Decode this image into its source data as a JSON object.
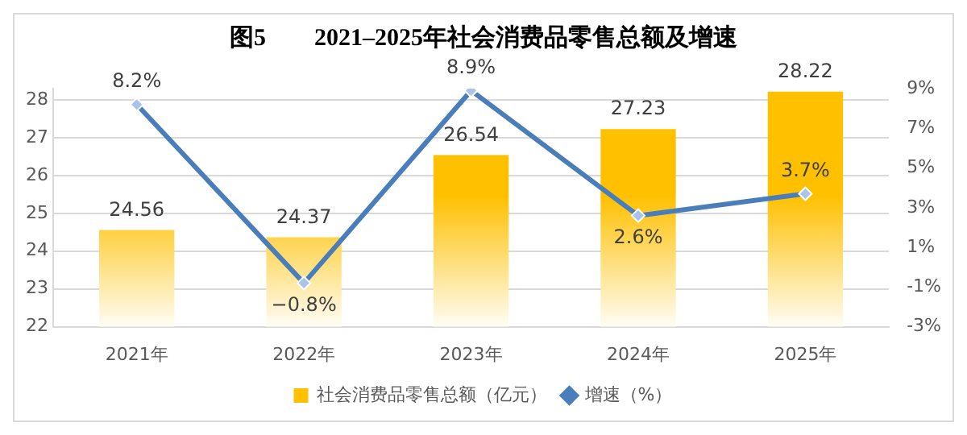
{
  "chart_data": {
    "type": "bar",
    "title": "图5        2021–2025年社会消费品零售总额及增速",
    "categories": [
      "2021年",
      "2022年",
      "2023年",
      "2024年",
      "2025年"
    ],
    "series": [
      {
        "name": "社会消费品零售总额（亿元）",
        "color": "#ffc000",
        "values": [
          24.56,
          24.37,
          26.54,
          27.23,
          28.22
        ],
        "value_labels": [
          "24.56",
          "24.37",
          "26.54",
          "27.23",
          "28.22"
        ]
      },
      {
        "name": "增速（%）",
        "type": "line",
        "axis": "y2",
        "color": "#4a7ebb",
        "marker": "diamond",
        "values": [
          8.2,
          -0.8,
          8.9,
          2.6,
          3.7
        ],
        "value_labels": [
          "8.2%",
          "−0.8%",
          "8.9%",
          "2.6%",
          "3.7%"
        ]
      }
    ],
    "ylim": [
      22,
      28.3
    ],
    "yticks": [
      22,
      23,
      24,
      25,
      26,
      27,
      28
    ],
    "y2lim": [
      -3,
      9
    ],
    "y2ticks": [
      {
        "value": -3,
        "label": "-3%"
      },
      {
        "value": -1,
        "label": "-1%"
      },
      {
        "value": 1,
        "label": "1%"
      },
      {
        "value": 3,
        "label": "3%"
      },
      {
        "value": 5,
        "label": "5%"
      },
      {
        "value": 7,
        "label": "7%"
      },
      {
        "value": 9,
        "label": "9%"
      }
    ],
    "grid": "y",
    "legend": "bottom"
  }
}
